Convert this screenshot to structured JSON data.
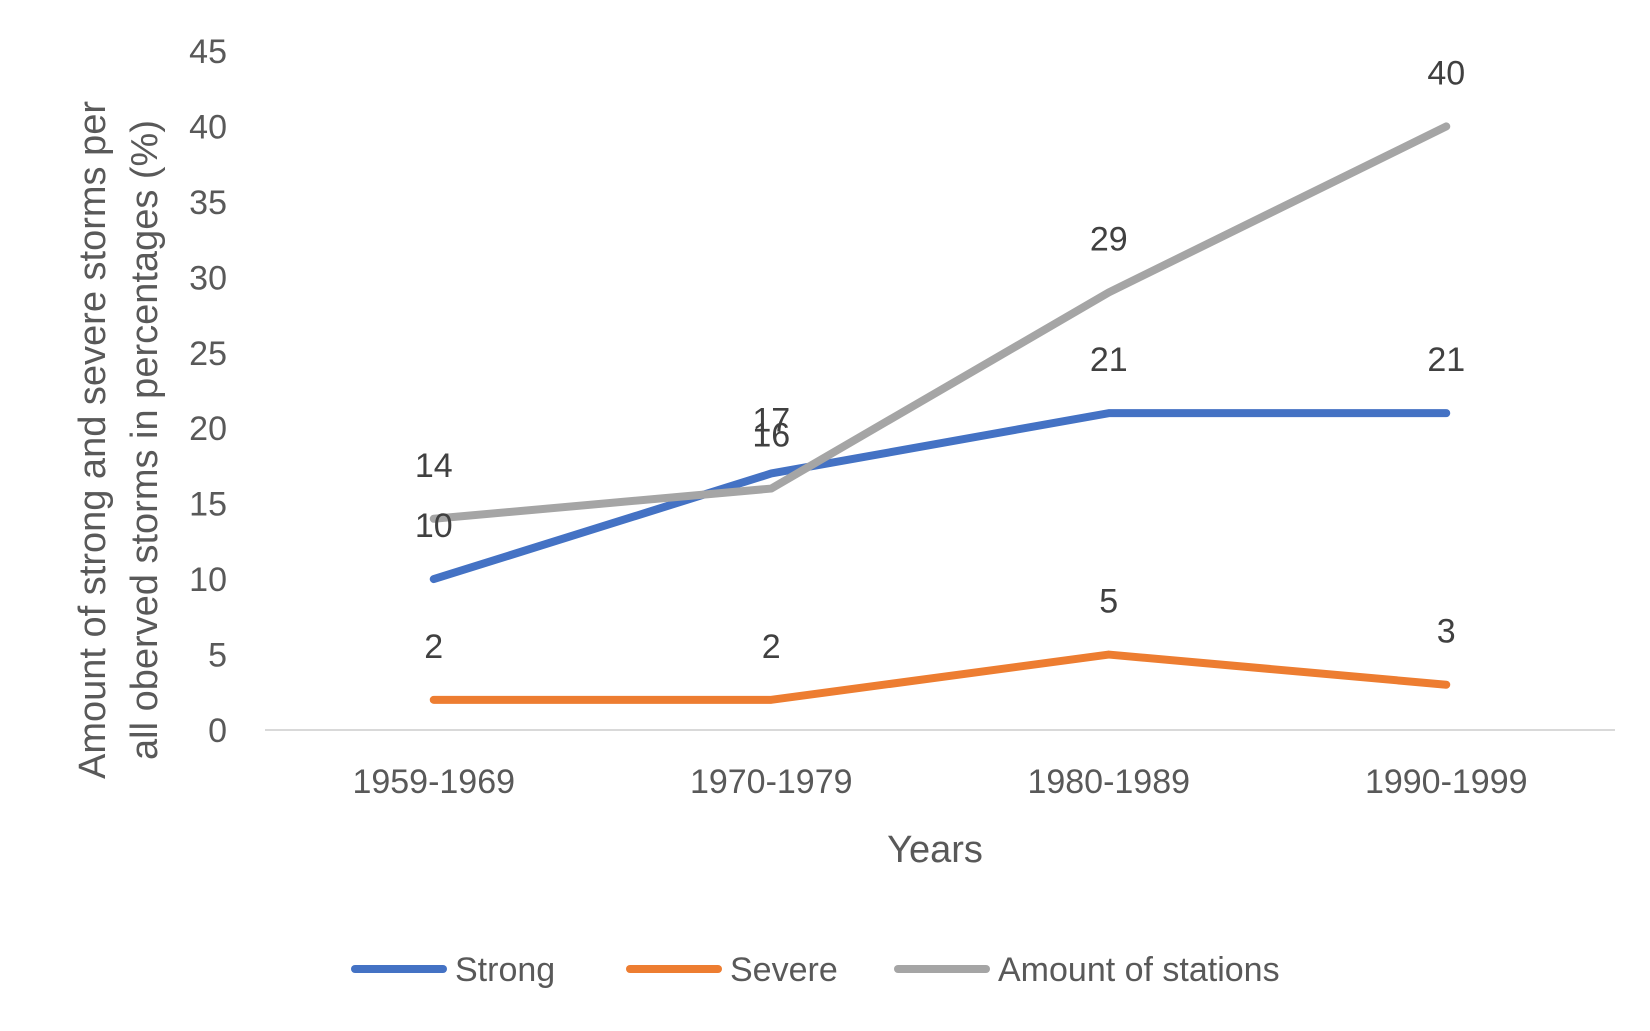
{
  "chart_data": {
    "type": "line",
    "title": "",
    "xlabel": "Years",
    "ylabel": "Amount of strong and severe storms per all oberved storms in percentages (%)",
    "ylabel_lines": [
      "Amount of strong and severe storms per",
      "all oberved storms in percentages (%)"
    ],
    "categories": [
      "1959-1969",
      "1970-1979",
      "1980-1989",
      "1990-1999"
    ],
    "yticks": [
      "0",
      "5",
      "10",
      "15",
      "20",
      "25",
      "30",
      "35",
      "40",
      "45"
    ],
    "ylim": [
      0,
      45
    ],
    "grid": false,
    "legend_position": "bottom",
    "series": [
      {
        "name": "Strong",
        "color": "#4472C4",
        "values": [
          10,
          17,
          21,
          21
        ],
        "labels": [
          "10",
          "17",
          "21",
          "21"
        ]
      },
      {
        "name": "Severe",
        "color": "#ED7D31",
        "values": [
          2,
          2,
          5,
          3
        ],
        "labels": [
          "2",
          "2",
          "5",
          "3"
        ]
      },
      {
        "name": "Amount of stations",
        "color": "#A5A5A5",
        "values": [
          14,
          16,
          29,
          40
        ],
        "labels": [
          "14",
          "16",
          "29",
          "40"
        ]
      }
    ]
  }
}
